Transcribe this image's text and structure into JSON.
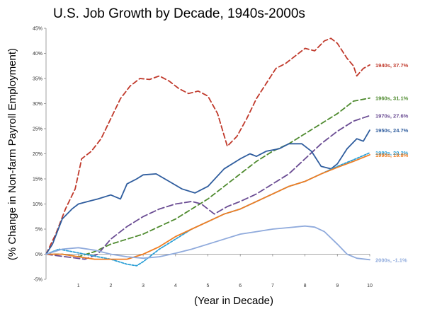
{
  "chart_data": {
    "type": "line",
    "title": "U.S. Job Growth by Decade, 1940s-2000s",
    "xlabel": "(Year in Decade)",
    "ylabel": "(% Change in Non-farm Payroll Employment)",
    "xlim": [
      0,
      10
    ],
    "ylim": [
      -5,
      45
    ],
    "x_ticks": [
      "1",
      "2",
      "3",
      "4",
      "5",
      "6",
      "7",
      "8",
      "9",
      "10"
    ],
    "y_ticks": [
      "-5%",
      "0%",
      "5%",
      "10%",
      "15%",
      "20%",
      "25%",
      "30%",
      "35%",
      "40%",
      "45%"
    ],
    "grid": false,
    "legend": "direct labels at line ends",
    "series": [
      {
        "name": "1940s",
        "end_label": "1940s, 37.7%",
        "color": "#c0392b",
        "dash": "dashed",
        "points": [
          [
            0,
            0
          ],
          [
            0.3,
            4
          ],
          [
            0.6,
            9
          ],
          [
            0.9,
            13
          ],
          [
            1.1,
            19
          ],
          [
            1.4,
            20.5
          ],
          [
            1.7,
            23
          ],
          [
            2.0,
            27
          ],
          [
            2.3,
            31
          ],
          [
            2.6,
            33.5
          ],
          [
            2.9,
            35
          ],
          [
            3.2,
            34.8
          ],
          [
            3.5,
            35.5
          ],
          [
            3.8,
            34.5
          ],
          [
            4.1,
            33
          ],
          [
            4.4,
            32
          ],
          [
            4.7,
            32.5
          ],
          [
            5.0,
            31.5
          ],
          [
            5.3,
            28
          ],
          [
            5.6,
            21.5
          ],
          [
            5.9,
            23.5
          ],
          [
            6.2,
            27
          ],
          [
            6.5,
            31
          ],
          [
            6.8,
            34
          ],
          [
            7.1,
            37
          ],
          [
            7.4,
            38
          ],
          [
            7.7,
            39.5
          ],
          [
            8.0,
            41
          ],
          [
            8.3,
            40.5
          ],
          [
            8.6,
            42.5
          ],
          [
            8.8,
            43
          ],
          [
            9.0,
            42
          ],
          [
            9.3,
            39
          ],
          [
            9.5,
            37.5
          ],
          [
            9.6,
            35.5
          ],
          [
            9.8,
            37
          ],
          [
            10.0,
            37.7
          ]
        ]
      },
      {
        "name": "1960s",
        "end_label": "1960s, 31.1%",
        "color": "#4e8a2e",
        "dash": "dashed",
        "points": [
          [
            0,
            0
          ],
          [
            0.5,
            0
          ],
          [
            1.0,
            -0.5
          ],
          [
            1.5,
            0.5
          ],
          [
            2.0,
            2
          ],
          [
            2.5,
            3
          ],
          [
            3.0,
            4
          ],
          [
            3.5,
            5.5
          ],
          [
            4.0,
            7
          ],
          [
            4.5,
            9
          ],
          [
            5.0,
            11
          ],
          [
            5.5,
            13.5
          ],
          [
            6.0,
            16
          ],
          [
            6.5,
            18.5
          ],
          [
            7.0,
            20.5
          ],
          [
            7.5,
            22
          ],
          [
            8.0,
            24
          ],
          [
            8.5,
            26
          ],
          [
            9.0,
            28
          ],
          [
            9.5,
            30.5
          ],
          [
            10.0,
            31.1
          ]
        ]
      },
      {
        "name": "1970s",
        "end_label": "1970s, 27.6%",
        "color": "#6a4c93",
        "dash": "longdash",
        "points": [
          [
            0,
            0
          ],
          [
            0.6,
            -0.5
          ],
          [
            1.2,
            -1
          ],
          [
            1.6,
            0
          ],
          [
            2.0,
            3
          ],
          [
            2.5,
            5.5
          ],
          [
            3.0,
            7.5
          ],
          [
            3.5,
            9
          ],
          [
            4.0,
            10
          ],
          [
            4.5,
            10.5
          ],
          [
            4.8,
            10
          ],
          [
            5.2,
            8
          ],
          [
            5.6,
            9.5
          ],
          [
            6.0,
            10.5
          ],
          [
            6.5,
            12
          ],
          [
            7.0,
            14
          ],
          [
            7.5,
            16
          ],
          [
            8.0,
            19
          ],
          [
            8.5,
            22
          ],
          [
            9.0,
            24.5
          ],
          [
            9.5,
            26.5
          ],
          [
            10.0,
            27.6
          ]
        ]
      },
      {
        "name": "1950s",
        "end_label": "1950s, 24.7%",
        "color": "#2f5d9e",
        "dash": "solid",
        "points": [
          [
            0,
            0
          ],
          [
            0.2,
            2
          ],
          [
            0.5,
            7
          ],
          [
            0.8,
            9
          ],
          [
            1.0,
            10
          ],
          [
            1.3,
            10.5
          ],
          [
            1.6,
            11
          ],
          [
            2.0,
            11.8
          ],
          [
            2.3,
            11
          ],
          [
            2.5,
            14
          ],
          [
            2.8,
            15
          ],
          [
            3.0,
            15.8
          ],
          [
            3.4,
            16
          ],
          [
            3.8,
            14.5
          ],
          [
            4.2,
            13
          ],
          [
            4.6,
            12.2
          ],
          [
            5.0,
            13.5
          ],
          [
            5.5,
            17
          ],
          [
            6.0,
            19
          ],
          [
            6.3,
            20
          ],
          [
            6.5,
            19.5
          ],
          [
            6.8,
            20.5
          ],
          [
            7.2,
            21
          ],
          [
            7.5,
            22
          ],
          [
            7.9,
            22
          ],
          [
            8.2,
            20.5
          ],
          [
            8.5,
            17.5
          ],
          [
            8.8,
            17
          ],
          [
            9.0,
            18
          ],
          [
            9.3,
            21
          ],
          [
            9.6,
            23
          ],
          [
            9.8,
            22.5
          ],
          [
            10.0,
            24.7
          ]
        ]
      },
      {
        "name": "1980s",
        "end_label": "1980s, 20.2%",
        "color": "#2a9fd6",
        "dash": "dotted",
        "points": [
          [
            0,
            0
          ],
          [
            0.4,
            1
          ],
          [
            0.8,
            0.5
          ],
          [
            1.2,
            0
          ],
          [
            1.6,
            -0.5
          ],
          [
            2.0,
            -1
          ],
          [
            2.5,
            -2
          ],
          [
            2.8,
            -2.3
          ],
          [
            3.0,
            -1.5
          ],
          [
            3.5,
            1
          ],
          [
            4.0,
            3
          ],
          [
            4.5,
            5
          ],
          [
            5.0,
            6.5
          ],
          [
            5.5,
            8
          ],
          [
            6.0,
            9
          ],
          [
            6.5,
            10.5
          ],
          [
            7.0,
            12
          ],
          [
            7.5,
            13.5
          ],
          [
            8.0,
            14.5
          ],
          [
            8.5,
            16
          ],
          [
            9.0,
            17.5
          ],
          [
            9.5,
            18.8
          ],
          [
            10.0,
            20.2
          ]
        ]
      },
      {
        "name": "1990s",
        "end_label": "1990s, 19.8%",
        "color": "#ef7d22",
        "dash": "solid",
        "points": [
          [
            0,
            0
          ],
          [
            0.5,
            0
          ],
          [
            1.0,
            -0.5
          ],
          [
            1.5,
            -1
          ],
          [
            2.0,
            -1
          ],
          [
            2.5,
            -1
          ],
          [
            3.0,
            0
          ],
          [
            3.5,
            1.5
          ],
          [
            4.0,
            3.5
          ],
          [
            4.5,
            5
          ],
          [
            5.0,
            6.5
          ],
          [
            5.5,
            8
          ],
          [
            6.0,
            9
          ],
          [
            6.5,
            10.5
          ],
          [
            7.0,
            12
          ],
          [
            7.5,
            13.5
          ],
          [
            8.0,
            14.5
          ],
          [
            8.5,
            16
          ],
          [
            9.0,
            17.3
          ],
          [
            9.5,
            18.5
          ],
          [
            10.0,
            19.8
          ]
        ]
      },
      {
        "name": "2000s",
        "end_label": "2000s, -1.1%",
        "color": "#8faadc",
        "dash": "solid",
        "points": [
          [
            0,
            0
          ],
          [
            0.5,
            1
          ],
          [
            1.0,
            1.3
          ],
          [
            1.5,
            0.8
          ],
          [
            2.0,
            0
          ],
          [
            2.5,
            -0.5
          ],
          [
            3.0,
            -0.8
          ],
          [
            3.5,
            -0.5
          ],
          [
            4.0,
            0.2
          ],
          [
            4.5,
            1
          ],
          [
            5.0,
            2
          ],
          [
            5.5,
            3
          ],
          [
            6.0,
            4
          ],
          [
            6.5,
            4.5
          ],
          [
            7.0,
            5
          ],
          [
            7.5,
            5.3
          ],
          [
            8.0,
            5.6
          ],
          [
            8.3,
            5.4
          ],
          [
            8.6,
            4.5
          ],
          [
            9.0,
            2
          ],
          [
            9.3,
            0
          ],
          [
            9.6,
            -0.8
          ],
          [
            10.0,
            -1.1
          ]
        ]
      }
    ]
  }
}
